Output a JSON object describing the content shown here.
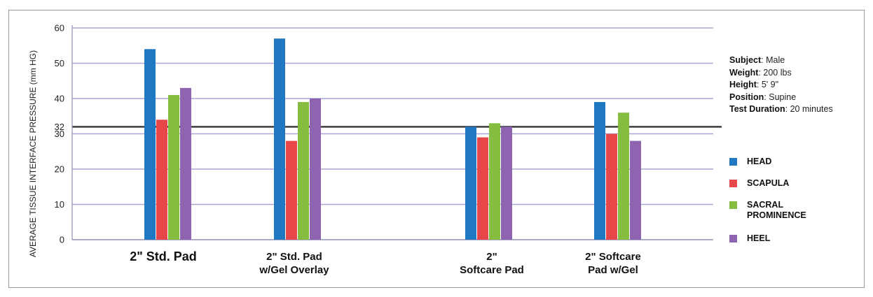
{
  "chart_data": {
    "type": "bar",
    "ylabel": "AVERAGE TISSUE INTERFACE PRESSURE (mm HG)",
    "ylim": [
      0,
      60
    ],
    "yticks": [
      "0",
      "10",
      "20",
      "30",
      "32",
      "40",
      "50",
      "60"
    ],
    "reference_line": 32,
    "grid": true,
    "categories": [
      [
        "2\" Std. Pad"
      ],
      [
        "2\" Std. Pad",
        "w/Gel Overlay"
      ],
      [
        "2\"",
        "Softcare Pad"
      ],
      [
        "2\" Softcare",
        "Pad w/Gel"
      ]
    ],
    "series": [
      {
        "name": "HEAD",
        "color": "#1f78c1",
        "values": [
          54,
          57,
          32,
          39
        ]
      },
      {
        "name": "SCAPULA",
        "color": "#e8474a",
        "values": [
          34,
          28,
          29,
          30
        ]
      },
      {
        "name": "SACRAL PROMINENCE",
        "color": "#84bd3f",
        "values": [
          41,
          39,
          33,
          36
        ]
      },
      {
        "name": "HEEL",
        "color": "#8e63b0",
        "values": [
          43,
          40,
          32,
          28
        ]
      }
    ],
    "legend_position": "right"
  },
  "info": [
    {
      "key": "Subject",
      "value": ": Male"
    },
    {
      "key": "Weight",
      "value": ": 200 lbs"
    },
    {
      "key": "Height",
      "value": ": 5' 9\""
    },
    {
      "key": "Position",
      "value": ": Supine"
    },
    {
      "key": "Test Duration",
      "value": ": 20 minutes"
    }
  ],
  "legend": [
    {
      "lines": [
        "HEAD"
      ],
      "color": "#1f78c1"
    },
    {
      "lines": [
        "SCAPULA"
      ],
      "color": "#e8474a"
    },
    {
      "lines": [
        "SACRAL",
        "PROMINENCE"
      ],
      "color": "#84bd3f"
    },
    {
      "lines": [
        "HEEL"
      ],
      "color": "#8e63b0"
    }
  ]
}
